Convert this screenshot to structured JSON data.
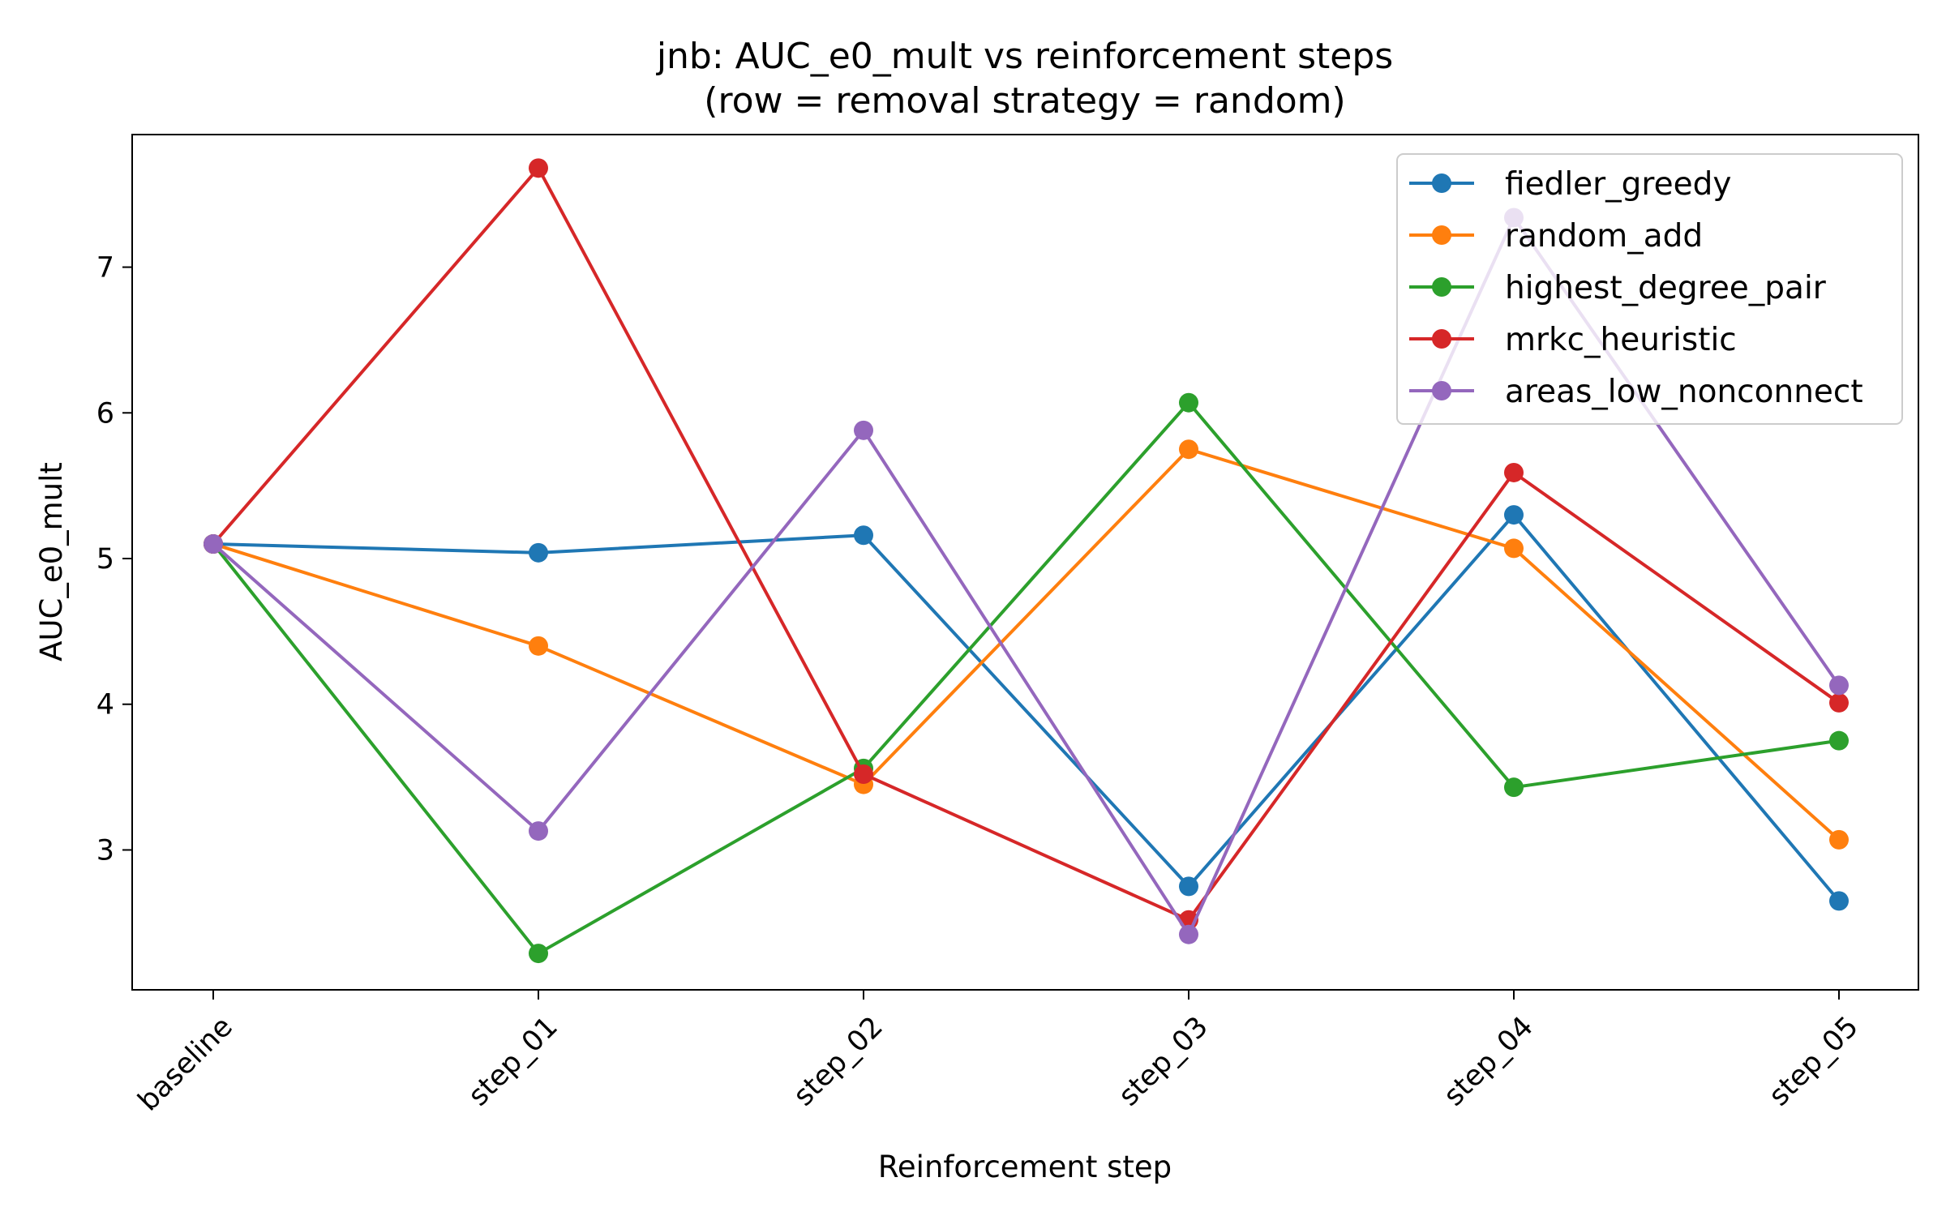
{
  "chart_data": {
    "type": "line",
    "title": "jnb: AUC_e0_mult vs reinforcement steps",
    "subtitle": "(row = removal strategy = random)",
    "xlabel": "Reinforcement step",
    "ylabel": "AUC_e0_mult",
    "categories": [
      "baseline",
      "step_01",
      "step_02",
      "step_03",
      "step_04",
      "step_05"
    ],
    "y_ticks": [
      3,
      4,
      5,
      6,
      7
    ],
    "ylim": [
      2.04,
      7.91
    ],
    "grid": false,
    "legend_position": "top-right",
    "series": [
      {
        "name": "fiedler_greedy",
        "color": "#1f77b4",
        "values": [
          5.1,
          5.04,
          5.16,
          2.75,
          5.3,
          2.65
        ]
      },
      {
        "name": "random_add",
        "color": "#ff7f0e",
        "values": [
          5.1,
          4.4,
          3.45,
          5.75,
          5.07,
          3.07
        ]
      },
      {
        "name": "highest_degree_pair",
        "color": "#2ca02c",
        "values": [
          5.1,
          2.29,
          3.56,
          6.07,
          3.43,
          3.75
        ]
      },
      {
        "name": "mrkc_heuristic",
        "color": "#d62728",
        "values": [
          5.1,
          7.68,
          3.52,
          2.52,
          5.59,
          4.01
        ]
      },
      {
        "name": "areas_low_nonconnect",
        "color": "#9467bd",
        "values": [
          5.1,
          3.13,
          5.88,
          2.42,
          7.34,
          4.13
        ]
      }
    ]
  }
}
